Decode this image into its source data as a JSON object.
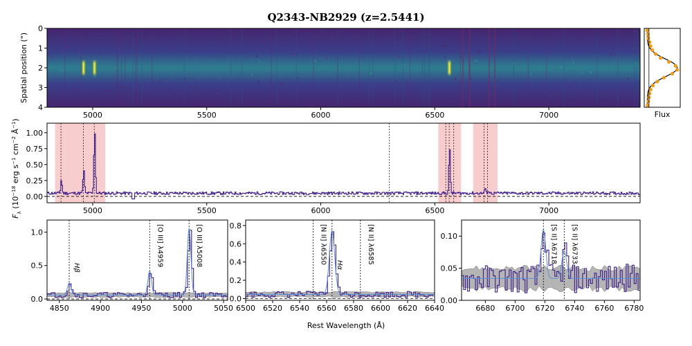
{
  "title": "Q2343-NB2929 (z=2.5441)",
  "xlabel": "Rest Wavelength (Å)",
  "colors": {
    "spectrum": "#3b1a8a",
    "model": "#5b8fd6",
    "error_band": "#a9a9a9",
    "shade": "#f4b8b8",
    "profile_points": "#f39c12",
    "gauss_fit": "#000000"
  },
  "chart_data": [
    {
      "id": "spectrum-2d",
      "type": "heatmap",
      "ylabel": "Spatial position (\")",
      "xlim": [
        4800,
        7400
      ],
      "ylim": [
        0,
        4
      ],
      "xticks": [
        5000,
        5500,
        6000,
        6500,
        7000
      ],
      "yticks": [
        0,
        1,
        2,
        3,
        4
      ],
      "emission_spots": [
        {
          "x": 5008,
          "y": 2.0
        },
        {
          "x": 4960,
          "y": 2.0
        },
        {
          "x": 6564,
          "y": 2.0
        }
      ]
    },
    {
      "id": "spatial-profile",
      "type": "scatter",
      "xlabel": "Flux",
      "ylim": [
        0,
        4
      ],
      "points": [
        {
          "y": 0.1,
          "x": 0.05
        },
        {
          "y": 0.3,
          "x": 0.07
        },
        {
          "y": 0.5,
          "x": 0.08
        },
        {
          "y": 0.7,
          "x": 0.12
        },
        {
          "y": 0.9,
          "x": 0.15
        },
        {
          "y": 1.1,
          "x": 0.2
        },
        {
          "y": 1.3,
          "x": 0.3
        },
        {
          "y": 1.5,
          "x": 0.45
        },
        {
          "y": 1.7,
          "x": 0.7
        },
        {
          "y": 1.9,
          "x": 0.9
        },
        {
          "y": 2.1,
          "x": 0.95
        },
        {
          "y": 2.3,
          "x": 0.8
        },
        {
          "y": 2.5,
          "x": 0.55
        },
        {
          "y": 2.7,
          "x": 0.35
        },
        {
          "y": 2.9,
          "x": 0.22
        },
        {
          "y": 3.1,
          "x": 0.15
        },
        {
          "y": 3.3,
          "x": 0.12
        },
        {
          "y": 3.5,
          "x": 0.1
        },
        {
          "y": 3.7,
          "x": 0.08
        },
        {
          "y": 3.9,
          "x": 0.06
        }
      ],
      "fit": {
        "center": 2.0,
        "sigma": 0.45,
        "amplitude": 0.95,
        "offset": 0.05
      }
    },
    {
      "id": "spectrum-1d",
      "type": "line",
      "ylabel": "F_λ (10^-18 erg s^-1 cm^-2 Å^-1)",
      "ylabel_parts": [
        "F",
        "λ",
        " (10",
        "−18",
        " erg s",
        "−1",
        " cm",
        "−2",
        " Å",
        "−1",
        ")"
      ],
      "xlim": [
        4800,
        7400
      ],
      "ylim": [
        -0.1,
        1.15
      ],
      "xticks": [
        5000,
        5500,
        6000,
        6500,
        7000
      ],
      "yticks": [
        0.0,
        0.25,
        0.5,
        0.75,
        1.0
      ],
      "ytick_labels": [
        "0.00",
        "0.25",
        "0.50",
        "0.75",
        "1.00"
      ],
      "continuum": 0.05,
      "shaded_regions": [
        [
          4835,
          5055
        ],
        [
          6515,
          6615
        ],
        [
          6668,
          6775
        ]
      ],
      "vlines": [
        4861,
        4959,
        5007,
        6300,
        6548,
        6563,
        6583,
        6716,
        6731
      ],
      "lines": [
        {
          "center": 4861,
          "amp": 0.21,
          "sigma": 3
        },
        {
          "center": 4959,
          "amp": 0.36,
          "sigma": 3
        },
        {
          "center": 5007,
          "amp": 1.0,
          "sigma": 3
        },
        {
          "center": 6563,
          "amp": 0.7,
          "sigma": 3
        },
        {
          "center": 6718,
          "amp": 0.07,
          "sigma": 3
        },
        {
          "center": 6733,
          "amp": 0.04,
          "sigma": 3
        }
      ]
    },
    {
      "id": "zoom-hb-oiii",
      "type": "line",
      "xlim": [
        4835,
        5055
      ],
      "ylim": [
        -0.02,
        1.18
      ],
      "xticks": [
        4850,
        4900,
        4950,
        5000,
        5050
      ],
      "yticks": [
        0.0,
        0.5,
        1.0
      ],
      "ytick_labels": [
        "0.0",
        "0.5",
        "1.0"
      ],
      "continuum": 0.06,
      "error_band": [
        0.03,
        0.09
      ],
      "lines": [
        {
          "center": 4862,
          "amp": 0.18,
          "sigma": 2.2
        },
        {
          "center": 4960,
          "amp": 0.36,
          "sigma": 2.2
        },
        {
          "center": 5008,
          "amp": 1.0,
          "sigma": 2.2
        }
      ],
      "line_labels": [
        {
          "x": 4862,
          "text": "Hβ",
          "italic": true
        },
        {
          "x": 4960,
          "text": "[O III] λ4959",
          "italic": false
        },
        {
          "x": 5008,
          "text": "[O III] λ5008",
          "italic": false
        }
      ]
    },
    {
      "id": "zoom-ha-nii",
      "type": "line",
      "xlim": [
        6500,
        6640
      ],
      "ylim": [
        -0.02,
        0.86
      ],
      "xticks": [
        6500,
        6520,
        6540,
        6560,
        6580,
        6600,
        6620,
        6640
      ],
      "yticks": [
        0.0,
        0.2,
        0.4,
        0.6,
        0.8
      ],
      "ytick_labels": [
        "0.0",
        "0.2",
        "0.4",
        "0.6",
        "0.8"
      ],
      "continuum": 0.045,
      "error_band": [
        0.02,
        0.07
      ],
      "lines": [
        {
          "center": 6564,
          "amp": 0.7,
          "sigma": 2.0
        }
      ],
      "line_labels": [
        {
          "x": 6550,
          "text": "[N II] λ6550",
          "italic": false
        },
        {
          "x": 6564,
          "text": "Hα",
          "italic": true
        },
        {
          "x": 6585,
          "text": "[N II] λ6585",
          "italic": false
        }
      ]
    },
    {
      "id": "zoom-sii",
      "type": "line",
      "xlim": [
        6664,
        6784
      ],
      "ylim": [
        0.0,
        0.125
      ],
      "xticks": [
        6680,
        6700,
        6720,
        6740,
        6760,
        6780
      ],
      "yticks": [
        0.0,
        0.05,
        0.1
      ],
      "ytick_labels": [
        "0.00",
        "0.05",
        "0.10"
      ],
      "continuum": 0.034,
      "error_band": [
        0.018,
        0.05
      ],
      "lines": [
        {
          "center": 6719,
          "amp": 0.076,
          "sigma": 1.6
        },
        {
          "center": 6733,
          "amp": 0.043,
          "sigma": 1.6
        }
      ],
      "line_labels": [
        {
          "x": 6719,
          "text": "[S II] λ6718",
          "italic": false
        },
        {
          "x": 6733,
          "text": "[S II] λ6733",
          "italic": false
        }
      ]
    }
  ]
}
